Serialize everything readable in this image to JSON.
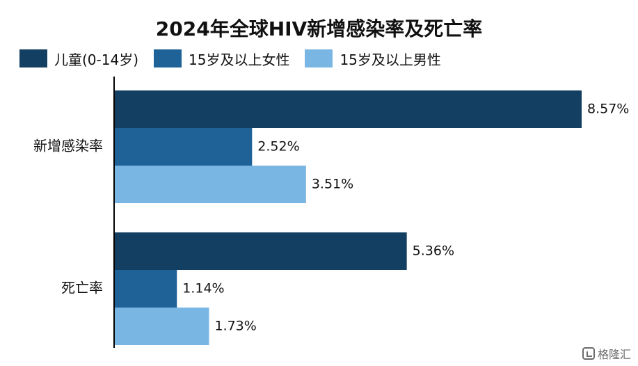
{
  "chart_data": {
    "type": "bar",
    "orientation": "horizontal",
    "title": "2024年全球HIV新增感染率及死亡率",
    "categories": [
      "新增感染率",
      "死亡率"
    ],
    "series": [
      {
        "name": "儿童(0-14岁)",
        "color": "#133f63",
        "values": [
          8.57,
          5.36
        ],
        "labels": [
          "8.57%",
          "5.36%"
        ]
      },
      {
        "name": "15岁及以上女性",
        "color": "#1e6298",
        "values": [
          2.52,
          1.14
        ],
        "labels": [
          "2.52%",
          "1.14%"
        ]
      },
      {
        "name": "15岁及以上男性",
        "color": "#7ab6e3",
        "values": [
          3.51,
          1.73
        ],
        "labels": [
          "3.51%",
          "1.73%"
        ]
      }
    ],
    "xlim": [
      0,
      8.8
    ],
    "grid": false,
    "legend_position": "top-left"
  },
  "watermark": {
    "brand": "格隆汇",
    "icon": "glh-logo-icon"
  }
}
